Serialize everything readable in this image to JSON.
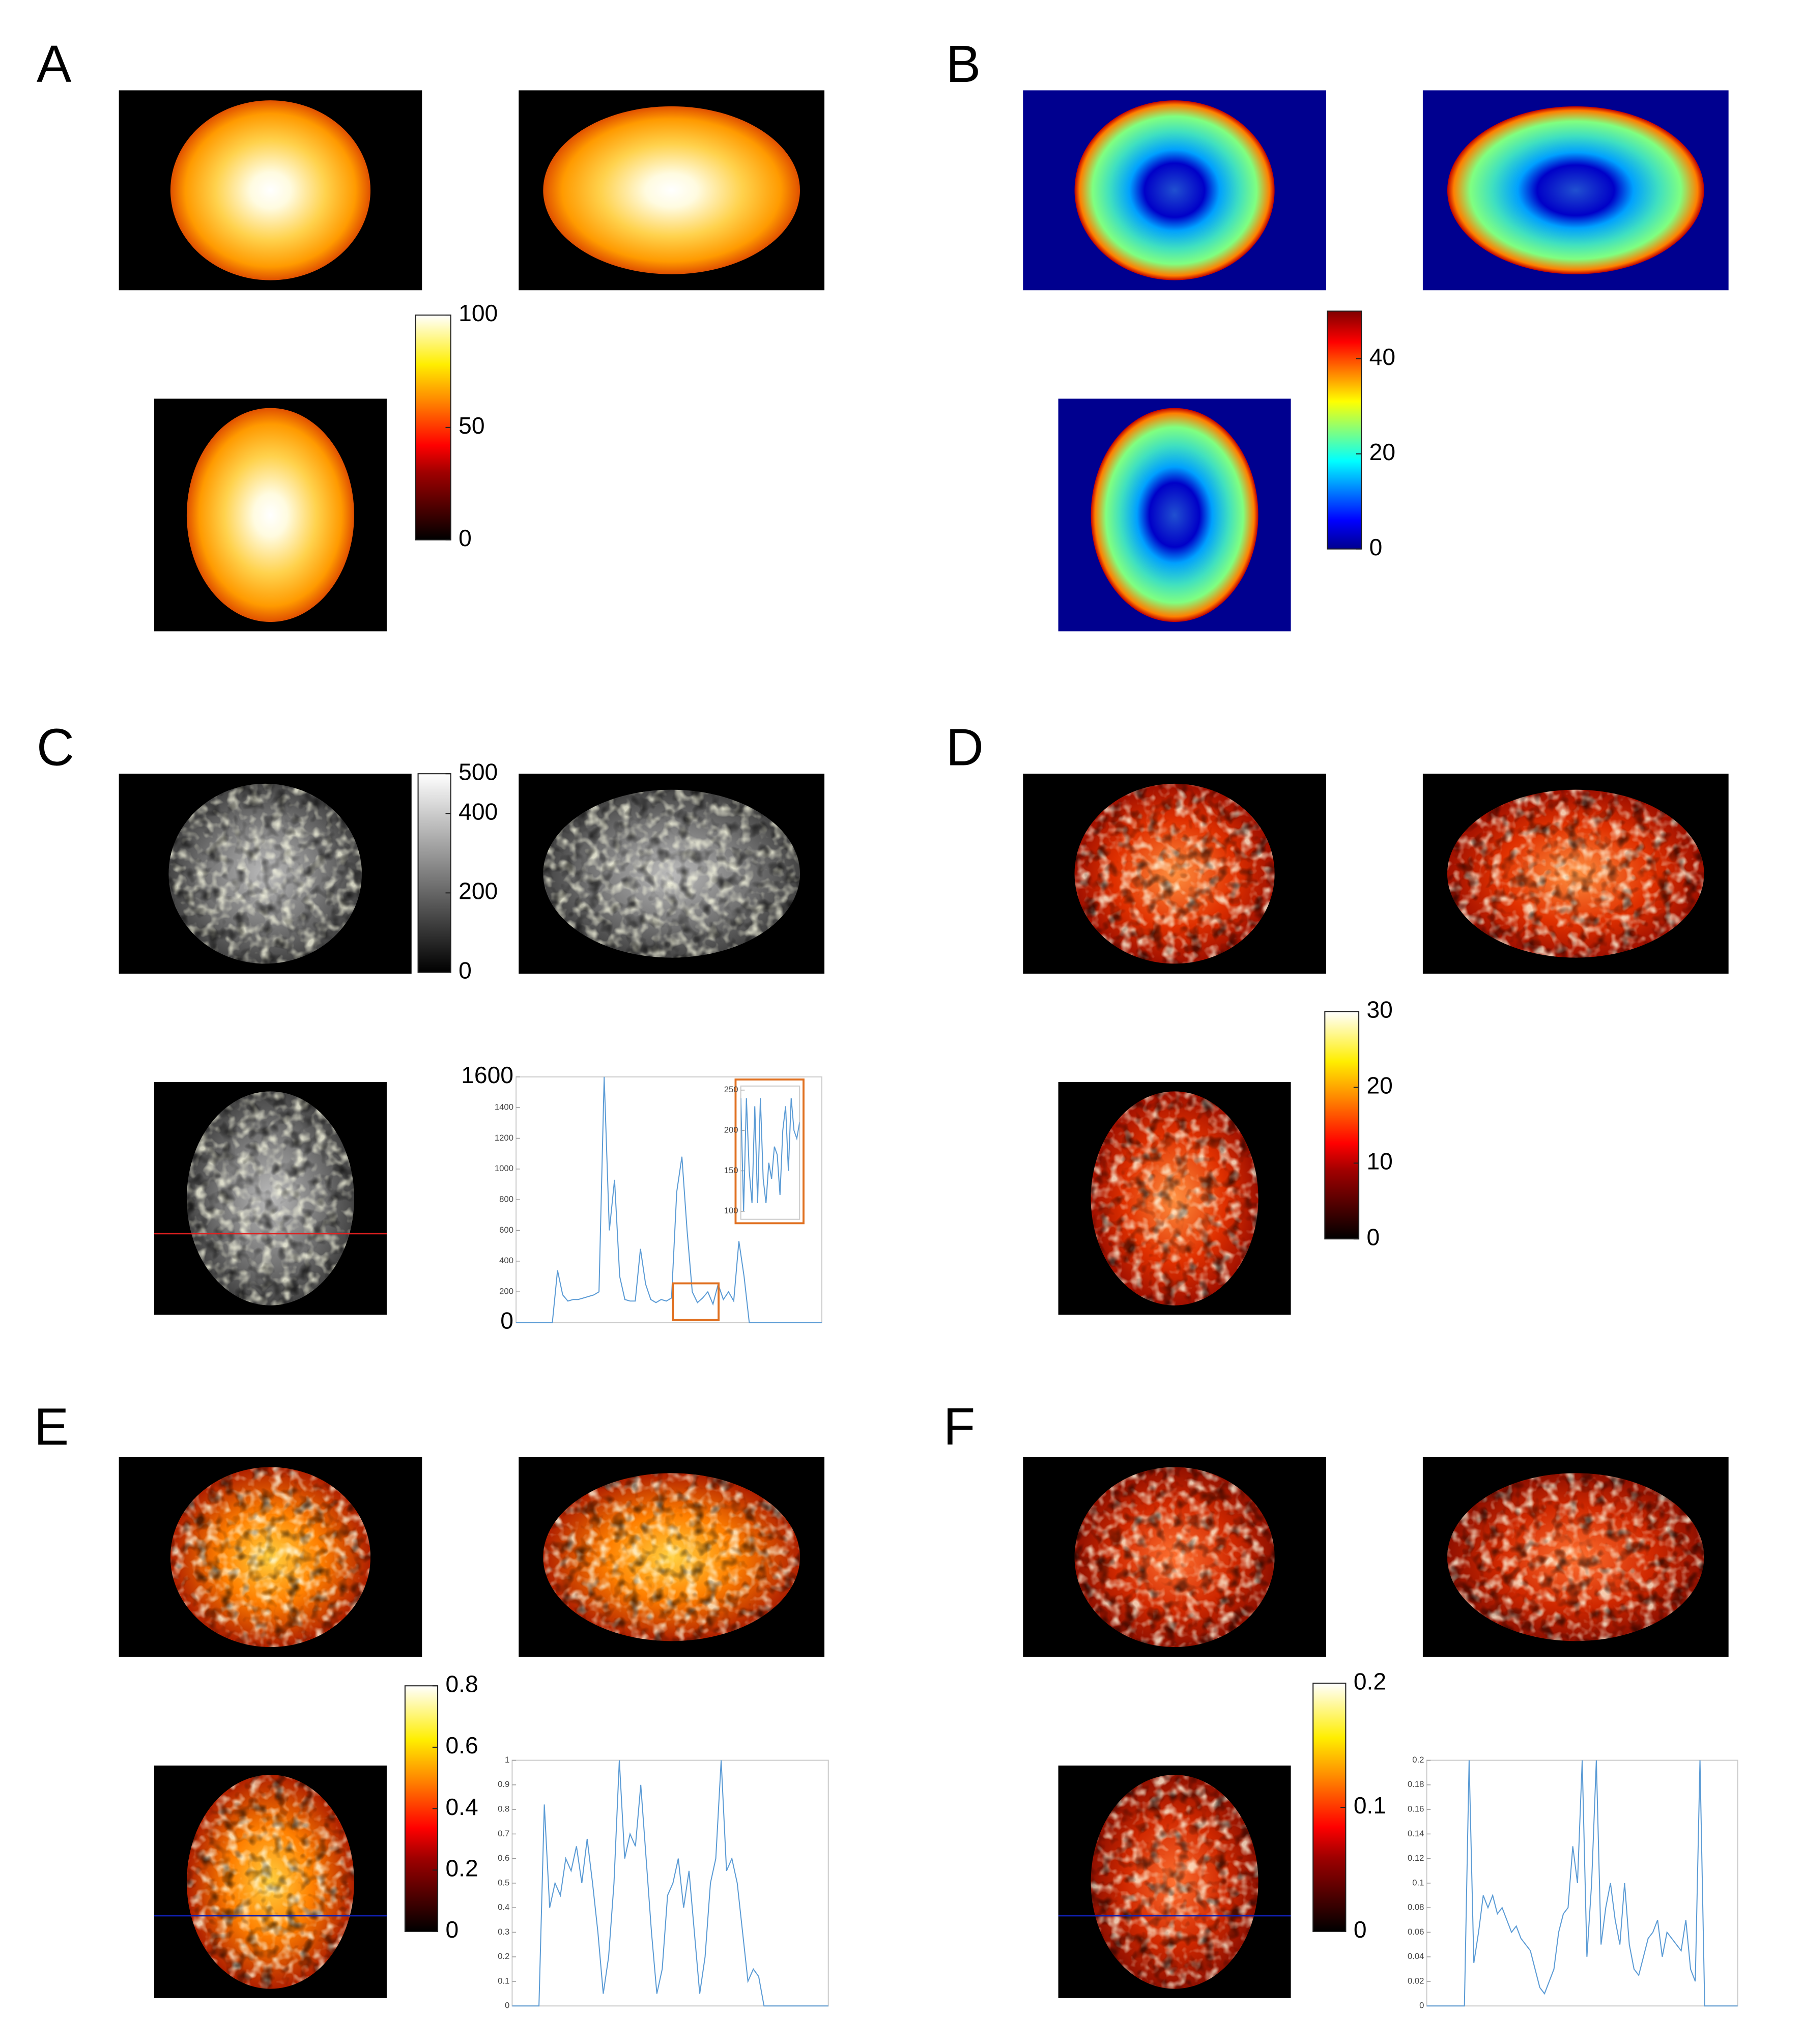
{
  "chart_data": [
    {
      "type": "map-panel",
      "label": "A",
      "colormap": "hot",
      "clim": [
        0,
        100
      ],
      "cticks": [
        0,
        50,
        100
      ]
    },
    {
      "type": "map-panel",
      "label": "B",
      "colormap": "jet",
      "clim": [
        0,
        50
      ],
      "cticks": [
        0,
        20,
        40
      ]
    },
    {
      "type": "map-panel",
      "label": "C",
      "colormap": "gray",
      "clim": [
        0,
        500
      ],
      "cticks": [
        0,
        200,
        400,
        500
      ],
      "profile": {
        "type": "line",
        "color": "#5b9bd5",
        "ylim": [
          0,
          1600
        ],
        "yticks": [
          0,
          200,
          400,
          600,
          800,
          1000,
          1200,
          1400,
          1600
        ],
        "values": [
          0,
          0,
          0,
          0,
          0,
          0,
          0,
          0,
          340,
          180,
          140,
          150,
          150,
          160,
          170,
          180,
          200,
          1600,
          600,
          930,
          300,
          150,
          140,
          140,
          480,
          250,
          150,
          130,
          150,
          140,
          160,
          850,
          1080,
          600,
          200,
          130,
          160,
          200,
          120,
          250,
          150,
          200,
          140,
          530,
          300,
          0,
          0,
          0,
          0,
          0,
          0,
          0,
          0,
          0,
          0,
          0,
          0,
          0,
          0,
          0
        ],
        "inset": {
          "type": "line",
          "color": "#5b9bd5",
          "ylim": [
            90,
            255
          ],
          "yticks": [
            100,
            150,
            200,
            250
          ],
          "values": [
            240,
            100,
            240,
            150,
            110,
            230,
            110,
            240,
            140,
            110,
            160,
            140,
            180,
            170,
            120,
            200,
            230,
            150,
            240,
            200,
            190,
            210
          ]
        }
      }
    },
    {
      "type": "map-panel",
      "label": "D",
      "colormap": "hot",
      "clim": [
        0,
        30
      ],
      "cticks": [
        0,
        10,
        20,
        30
      ]
    },
    {
      "type": "map-panel",
      "label": "E",
      "colormap": "hot",
      "clim": [
        0,
        0.8
      ],
      "cticks": [
        0,
        0.2,
        0.4,
        0.6,
        0.8
      ],
      "profile": {
        "type": "line",
        "color": "#5b9bd5",
        "ylim": [
          0,
          1
        ],
        "yticks": [
          0,
          0.1,
          0.2,
          0.3,
          0.4,
          0.5,
          0.6,
          0.7,
          0.8,
          0.9,
          1
        ],
        "values": [
          0,
          0,
          0,
          0,
          0,
          0,
          0.82,
          0.4,
          0.5,
          0.45,
          0.6,
          0.55,
          0.65,
          0.5,
          0.68,
          0.5,
          0.3,
          0.05,
          0.2,
          0.5,
          1.0,
          0.6,
          0.7,
          0.65,
          0.9,
          0.6,
          0.3,
          0.05,
          0.15,
          0.45,
          0.5,
          0.6,
          0.4,
          0.55,
          0.3,
          0.05,
          0.2,
          0.5,
          0.6,
          1.0,
          0.55,
          0.6,
          0.5,
          0.3,
          0.1,
          0.15,
          0.12,
          0,
          0,
          0,
          0,
          0,
          0,
          0,
          0,
          0,
          0,
          0,
          0,
          0
        ]
      }
    },
    {
      "type": "map-panel",
      "label": "F",
      "colormap": "hot",
      "clim": [
        0,
        0.2
      ],
      "cticks": [
        0,
        0.1,
        0.2
      ],
      "profile": {
        "type": "line",
        "color": "#5b9bd5",
        "ylim": [
          0,
          0.2
        ],
        "yticks": [
          0,
          0.02,
          0.04,
          0.06,
          0.08,
          0.1,
          0.12,
          0.14,
          0.16,
          0.18,
          0.2
        ],
        "values": [
          0,
          0,
          0,
          0,
          0,
          0,
          0,
          0,
          0,
          0.2,
          0.035,
          0.06,
          0.09,
          0.08,
          0.09,
          0.075,
          0.08,
          0.07,
          0.06,
          0.065,
          0.055,
          0.05,
          0.045,
          0.03,
          0.015,
          0.01,
          0.02,
          0.03,
          0.06,
          0.075,
          0.08,
          0.13,
          0.1,
          0.2,
          0.04,
          0.1,
          0.2,
          0.05,
          0.08,
          0.1,
          0.07,
          0.05,
          0.1,
          0.05,
          0.03,
          0.025,
          0.04,
          0.055,
          0.06,
          0.07,
          0.04,
          0.06,
          0.055,
          0.05,
          0.045,
          0.07,
          0.03,
          0.02,
          0.2,
          0,
          0,
          0,
          0,
          0,
          0,
          0,
          0
        ]
      }
    }
  ]
}
